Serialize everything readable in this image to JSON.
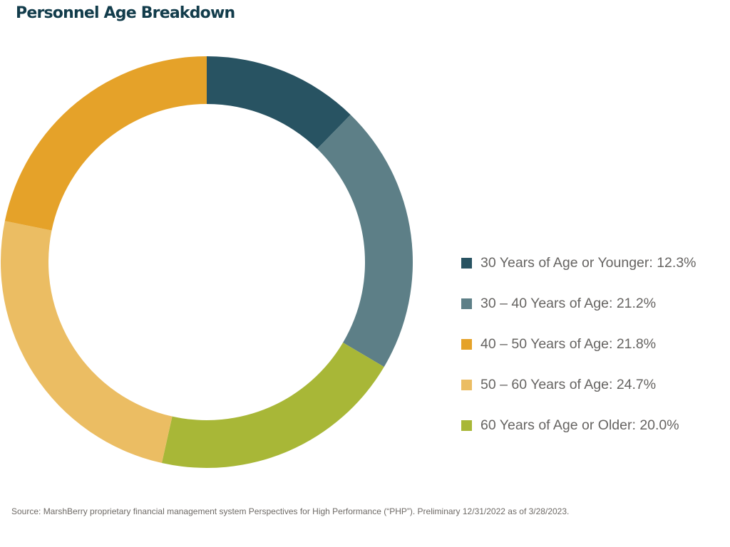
{
  "title": "Personnel Age Breakdown",
  "chart_data": {
    "type": "pie",
    "variant": "donut",
    "title": "Personnel Age Breakdown",
    "legend_position": "right",
    "slices": [
      {
        "name": "30 Years of Age or Younger",
        "value": 12.3,
        "color": "#285362"
      },
      {
        "name": "30 – 40 Years of Age",
        "value": 21.2,
        "color": "#5d7f87"
      },
      {
        "name": "40 – 50 Years of Age",
        "value": 21.8,
        "color": "#e5a229"
      },
      {
        "name": "50 – 60 Years of Age",
        "value": 24.7,
        "color": "#ebbd63"
      },
      {
        "name": "60 Years of Age or Older",
        "value": 20.0,
        "color": "#a8b737"
      }
    ],
    "ring_order": [
      0,
      1,
      4,
      3,
      2
    ],
    "legend": [
      {
        "label": "30 Years of Age or Younger: 12.3%",
        "color": "#285362"
      },
      {
        "label": "30 – 40 Years of Age: 21.2%",
        "color": "#5d7f87"
      },
      {
        "label": "40 – 50 Years of Age: 21.8%",
        "color": "#e5a229"
      },
      {
        "label": "50 – 60 Years of Age: 24.7%",
        "color": "#ebbd63"
      },
      {
        "label": "60 Years of Age or Older: 20.0%",
        "color": "#a8b737"
      }
    ]
  },
  "source": "Source: MarshBerry proprietary financial management system Perspectives for High Performance (“PHP”). Preliminary 12/31/2022 as of 3/28/2023."
}
